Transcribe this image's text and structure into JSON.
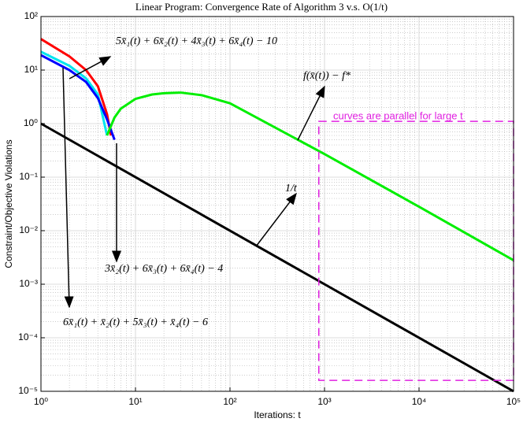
{
  "chart_data": {
    "type": "line",
    "title": "Linear Program: Convergence Rate of Algorithm 3 v.s. O(1/t)",
    "xlabel": "Iterations: t",
    "ylabel": "Constraint/Objective Violations",
    "log_x": true,
    "log_y": true,
    "grid": true,
    "xlim": [
      1,
      100000
    ],
    "ylim": [
      1e-05,
      100
    ],
    "xticks": [
      {
        "value": 1,
        "label": "10⁰"
      },
      {
        "value": 10,
        "label": "10¹"
      },
      {
        "value": 100,
        "label": "10²"
      },
      {
        "value": 1000,
        "label": "10³"
      },
      {
        "value": 10000,
        "label": "10⁴"
      },
      {
        "value": 100000,
        "label": "10⁵"
      }
    ],
    "yticks": [
      {
        "value": 1e-05,
        "label": "10⁻⁵"
      },
      {
        "value": 0.0001,
        "label": "10⁻⁴"
      },
      {
        "value": 0.001,
        "label": "10⁻³"
      },
      {
        "value": 0.01,
        "label": "10⁻²"
      },
      {
        "value": 0.1,
        "label": "10⁻¹"
      },
      {
        "value": 1,
        "label": "10⁰"
      },
      {
        "value": 10,
        "label": "10¹"
      },
      {
        "value": 100,
        "label": "10²"
      }
    ],
    "series": [
      {
        "color": "#ff0000",
        "x": [
          1,
          2,
          3,
          4,
          5,
          5.5
        ],
        "values": [
          38,
          18,
          10,
          5,
          1.5,
          0.6
        ]
      },
      {
        "color": "#00e5ee",
        "x": [
          1,
          2,
          3,
          4,
          5
        ],
        "values": [
          22,
          12,
          7,
          3.5,
          0.6
        ]
      },
      {
        "color": "#0000ff",
        "x": [
          1,
          2,
          3,
          4,
          5,
          6
        ],
        "values": [
          19,
          10,
          6,
          3,
          1.2,
          0.5
        ]
      },
      {
        "color": "#00ee00",
        "x": [
          5,
          5.5,
          6,
          7,
          10,
          15,
          20,
          30,
          50,
          100,
          1000,
          10000,
          100000
        ],
        "values": [
          0.6,
          0.9,
          1.3,
          1.9,
          2.9,
          3.5,
          3.7,
          3.8,
          3.4,
          2.4,
          0.27,
          0.028,
          0.0028
        ]
      },
      {
        "color": "#000000",
        "x": [
          1,
          100000
        ],
        "values": [
          1,
          1e-05
        ]
      }
    ],
    "region": {
      "xlim": [
        870,
        100000
      ],
      "ylim": [
        1.6e-05,
        1.1
      ],
      "color": "#e020e0"
    },
    "annotations": [
      "5x̄₁(t) + 6x̄₂(t) + 4x̄₃(t) + 6x̄₄(t) − 10",
      "f(x̄(t)) − f*",
      "1/t",
      "3x̄₂(t) + 6x̄₃(t) + 6x̄₄(t) − 4",
      "6x̄₁(t) + x̄₂(t) + 5x̄₃(t) + x̄₄(t) − 6",
      "curves are parallel for large t"
    ]
  }
}
